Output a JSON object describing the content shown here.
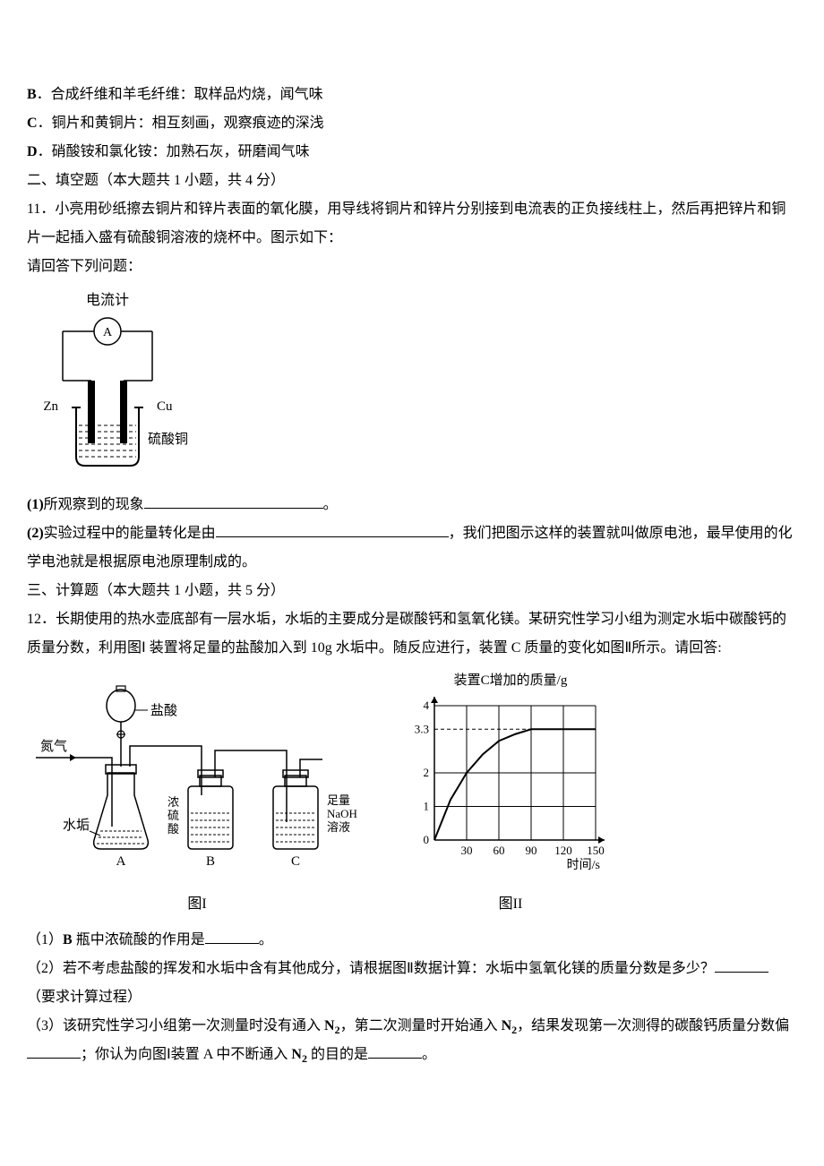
{
  "options": {
    "B_label": "B",
    "B_text": "．合成纤维和羊毛纤维：取样品灼烧，闻气味",
    "C_label": "C",
    "C_text": "．铜片和黄铜片：相互刻画，观察痕迹的深浅",
    "D_label": "D",
    "D_text": "．硝酸铵和氯化铵：加熟石灰，研磨闻气味"
  },
  "section2": {
    "heading": "二、填空题（本大题共 1 小题，共 4 分）",
    "q11_intro": "11．小亮用砂纸擦去铜片和锌片表面的氧化膜，用导线将铜片和锌片分别接到电流表的正负接线柱上，然后再把锌片和铜片一起插入盛有硫酸铜溶液的烧杯中。图示如下：",
    "answer_prompt": "请回答下列问题：",
    "q11_1_prefix": "(1)",
    "q11_1_text": "所观察到的现象",
    "q11_1_period": "。",
    "q11_2_prefix": "(2)",
    "q11_2_text": "实验过程中的能量转化是由",
    "q11_2_tail": "，我们把图示这样的装置就叫做原电池，最早使用的化学电池就是根据原电池原理制成的。"
  },
  "section3": {
    "heading": "三、计算题（本大题共 1 小题，共 5 分）",
    "q12_intro": "12．长期使用的热水壶底部有一层水垢，水垢的主要成分是碳酸钙和氢氧化镁。某研究性学习小组为测定水垢中碳酸钙的质量分数，利用图Ⅰ 装置将足量的盐酸加入到 10g 水垢中。随反应进行，装置 C 质量的变化如图Ⅱ所示。请回答:",
    "q12_1_num": "（1）",
    "q12_1_label": "B",
    "q12_1_text": " 瓶中浓硫酸的作用是",
    "q12_1_period": "。",
    "q12_2_num": "（2）若不考虑盐酸的挥发和水垢中含有其他成分，请根据图Ⅱ数据计算：水垢中氢氧化镁的质量分数是多少？",
    "q12_2_note": "（要求计算过程）",
    "q12_3_num": "（3）该研究性学习小组第一次测量时没有通入 ",
    "q12_3_mid": "，第二次测量时开始通入 ",
    "q12_3_tail1": "，结果发现第一次测得的碳酸钙质量分数偏",
    "q12_3_tail2": "；你认为向图Ⅰ装置 A 中不断通入 ",
    "q12_3_tail3": " 的目的是",
    "q12_3_period": "。",
    "N2": "N",
    "N2_sub": "2"
  },
  "fig1": {
    "label_ammeter": "电流计",
    "label_A": "A",
    "label_Zn": "Zn",
    "label_Cu": "Cu",
    "label_CuSO4": "硫酸铜",
    "stroke": "#000000",
    "fill_bg": "#ffffff"
  },
  "fig2": {
    "label_I": "图I",
    "label_II": "图II",
    "chart_title": "装置C增加的质量/g",
    "x_label": "时间/s",
    "y_ticks": [
      "0",
      "1",
      "2",
      "3.3",
      "4"
    ],
    "x_ticks": [
      "30",
      "60",
      "90",
      "120",
      "150"
    ],
    "axis_color": "#000000",
    "grid_color": "#000000",
    "bg": "#ffffff",
    "curve_points": [
      [
        0,
        0
      ],
      [
        15,
        1.2
      ],
      [
        30,
        2.0
      ],
      [
        45,
        2.55
      ],
      [
        60,
        2.95
      ],
      [
        75,
        3.15
      ],
      [
        90,
        3.3
      ],
      [
        120,
        3.3
      ],
      [
        150,
        3.3
      ]
    ],
    "y_max": 4,
    "x_max": 150
  },
  "apparatus": {
    "N2_in": "氮气",
    "HCl": "盐酸",
    "scale": "水垢",
    "H2SO4": "浓\n硫\n酸",
    "NaOH": "足量\nNaOH\n溶液",
    "A": "A",
    "B": "B",
    "C": "C"
  }
}
